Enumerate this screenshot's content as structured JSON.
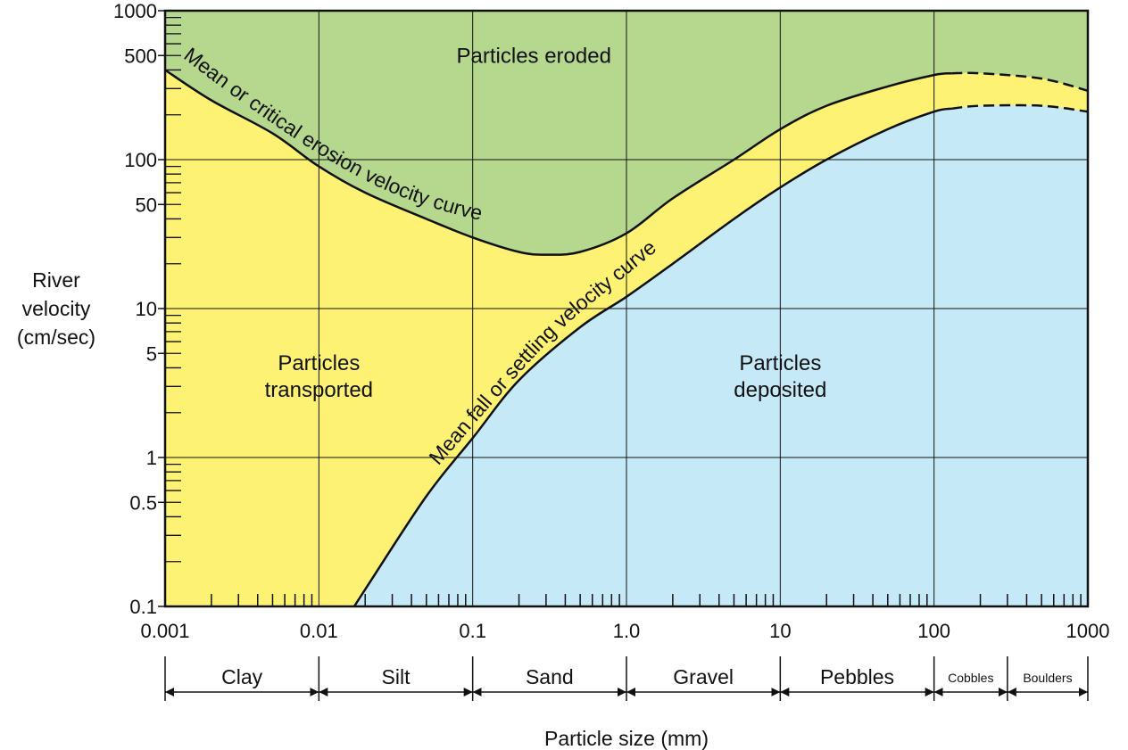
{
  "chart_data": {
    "type": "area",
    "xlabel": "Particle size (mm)",
    "ylabel_lines": [
      "River",
      "velocity",
      "(cm/sec)"
    ],
    "x_scale": "log",
    "y_scale": "log",
    "xlim": [
      0.001,
      1000
    ],
    "ylim": [
      0.1,
      1000
    ],
    "x_ticks": [
      0.001,
      0.01,
      0.1,
      1,
      10,
      100,
      1000
    ],
    "x_tick_labels": [
      "0.001",
      "0.01",
      "0.1",
      "1.0",
      "10",
      "100",
      "1000"
    ],
    "y_ticks": [
      0.1,
      0.5,
      1,
      5,
      10,
      50,
      100,
      500,
      1000
    ],
    "y_tick_labels": [
      "0.1",
      "0.5",
      "1",
      "5",
      "10",
      "50",
      "100",
      "500",
      "1000"
    ],
    "grid": true,
    "colors": {
      "eroded": "#b5d78e",
      "transported": "#fdf273",
      "deposited": "#c6e9f8",
      "line": "#111111"
    },
    "regions": [
      {
        "id": "eroded",
        "label_lines": [
          "Particles eroded"
        ],
        "x": 0.25,
        "y": 500
      },
      {
        "id": "transported",
        "label_lines": [
          "Particles",
          "transported"
        ],
        "x": 0.01,
        "y": 3.5
      },
      {
        "id": "deposited",
        "label_lines": [
          "Particles",
          "deposited"
        ],
        "x": 10,
        "y": 3.5
      }
    ],
    "series": [
      {
        "name": "Mean or critical erosion velocity curve",
        "x": [
          0.001,
          0.002,
          0.005,
          0.01,
          0.02,
          0.05,
          0.1,
          0.2,
          0.3,
          0.5,
          1,
          2,
          5,
          10,
          20,
          50,
          100,
          130
        ],
        "y": [
          400,
          250,
          150,
          90,
          60,
          40,
          30,
          24,
          23,
          24,
          32,
          55,
          100,
          160,
          230,
          310,
          370,
          380
        ],
        "dashed_x": [
          130,
          200,
          500,
          1000
        ],
        "dashed_y": [
          380,
          380,
          350,
          290
        ]
      },
      {
        "name": "Mean fall or settling velocity curve",
        "x": [
          0.017,
          0.02,
          0.05,
          0.1,
          0.2,
          0.5,
          1,
          2,
          5,
          10,
          20,
          50,
          100,
          130
        ],
        "y": [
          0.1,
          0.13,
          0.55,
          1.35,
          3.3,
          7.5,
          12,
          20,
          40,
          65,
          100,
          160,
          210,
          220
        ],
        "dashed_x": [
          130,
          200,
          500,
          1000
        ],
        "dashed_y": [
          220,
          230,
          230,
          210
        ]
      }
    ],
    "size_classes": [
      {
        "label": "Clay",
        "from": 0.001,
        "to": 0.01
      },
      {
        "label": "Silt",
        "from": 0.01,
        "to": 0.1
      },
      {
        "label": "Sand",
        "from": 0.1,
        "to": 1
      },
      {
        "label": "Gravel",
        "from": 1,
        "to": 10
      },
      {
        "label": "Pebbles",
        "from": 10,
        "to": 100
      },
      {
        "label": "Cobbles",
        "from": 100,
        "to": 300
      },
      {
        "label": "Boulders",
        "from": 300,
        "to": 1000
      }
    ]
  }
}
